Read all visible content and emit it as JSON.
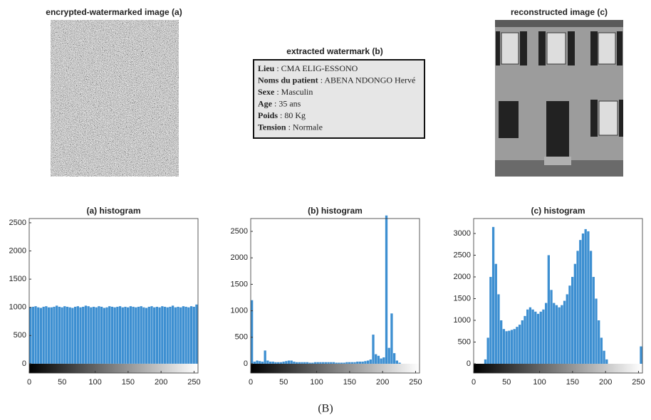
{
  "images": {
    "a_title": "encrypted-watermarked image (a)",
    "c_title": "reconstructed image (c)"
  },
  "watermark": {
    "title": "extracted watermark (b)",
    "lines": [
      {
        "label": "Lieu",
        "value": ": CMA ELIG-ESSONO"
      },
      {
        "label": "Noms du patient",
        "value": ": ABENA NDONGO Hervé"
      },
      {
        "label": "Sexe",
        "value": ": Masculin"
      },
      {
        "label": "Age",
        "value": ": 35 ans"
      },
      {
        "label": "Poids",
        "value": ": 80 Kg"
      },
      {
        "label": "Tension",
        "value": ": Normale"
      }
    ]
  },
  "caption": "(B)",
  "chart_data": [
    {
      "type": "histogram",
      "title": "(a) histogram",
      "color": "#3d8fd1",
      "bins": [
        0,
        4,
        8,
        12,
        16,
        20,
        24,
        28,
        32,
        36,
        40,
        44,
        48,
        52,
        56,
        60,
        64,
        68,
        72,
        76,
        80,
        84,
        88,
        92,
        96,
        100,
        104,
        108,
        112,
        116,
        120,
        124,
        128,
        132,
        136,
        140,
        144,
        148,
        152,
        156,
        160,
        164,
        168,
        172,
        176,
        180,
        184,
        188,
        192,
        196,
        200,
        204,
        208,
        212,
        216,
        220,
        224,
        228,
        232,
        236,
        240,
        244,
        248,
        252,
        256
      ],
      "values": [
        1000,
        1010,
        1020,
        1000,
        990,
        1010,
        1020,
        1000,
        1000,
        1010,
        1030,
        1010,
        1000,
        1020,
        1010,
        1000,
        990,
        1010,
        1020,
        1000,
        1010,
        1030,
        1020,
        1000,
        1010,
        1000,
        1020,
        1010,
        990,
        1000,
        1020,
        1010,
        1000,
        1010,
        1020,
        1000,
        1010,
        1000,
        1020,
        1010,
        1000,
        1010,
        1020,
        1000,
        990,
        1010,
        1020,
        1000,
        1010,
        1000,
        1020,
        1010,
        1000,
        1010,
        1030,
        1000,
        1010,
        1000,
        1020,
        1010,
        1000,
        1020,
        1010,
        1050
      ],
      "xlim": [
        0,
        256
      ],
      "ylim": [
        -165,
        2575
      ],
      "xticks": [
        0,
        50,
        100,
        150,
        200,
        250
      ],
      "yticks": [
        0,
        500,
        1000,
        1500,
        2000,
        2500
      ]
    },
    {
      "type": "histogram",
      "title": "(b) histogram",
      "color": "#3d8fd1",
      "bins": [
        0,
        4,
        8,
        12,
        16,
        20,
        24,
        28,
        32,
        36,
        40,
        44,
        48,
        52,
        56,
        60,
        64,
        68,
        72,
        76,
        80,
        84,
        88,
        92,
        96,
        100,
        104,
        108,
        112,
        116,
        120,
        124,
        128,
        132,
        136,
        140,
        144,
        148,
        152,
        156,
        160,
        164,
        168,
        172,
        176,
        180,
        184,
        188,
        192,
        196,
        200,
        204,
        208,
        212,
        216,
        220,
        224,
        228,
        232,
        236,
        240,
        244,
        248,
        252,
        256
      ],
      "values": [
        1200,
        40,
        60,
        50,
        40,
        250,
        60,
        40,
        40,
        30,
        30,
        30,
        40,
        50,
        60,
        60,
        40,
        30,
        30,
        30,
        30,
        30,
        20,
        20,
        30,
        30,
        30,
        30,
        30,
        30,
        30,
        30,
        20,
        20,
        20,
        20,
        30,
        30,
        30,
        30,
        40,
        40,
        40,
        50,
        60,
        80,
        550,
        180,
        150,
        100,
        120,
        2800,
        300,
        950,
        200,
        60,
        20,
        0,
        0,
        0,
        0,
        0,
        0,
        0
      ],
      "xlim": [
        0,
        256
      ],
      "ylim": [
        -175,
        2742
      ],
      "xticks": [
        0,
        50,
        100,
        150,
        200,
        250
      ],
      "yticks": [
        0,
        500,
        1000,
        1500,
        2000,
        2500
      ]
    },
    {
      "type": "histogram",
      "title": "(c) histogram",
      "color": "#3d8fd1",
      "bins": [
        0,
        4,
        8,
        12,
        16,
        20,
        24,
        28,
        32,
        36,
        40,
        44,
        48,
        52,
        56,
        60,
        64,
        68,
        72,
        76,
        80,
        84,
        88,
        92,
        96,
        100,
        104,
        108,
        112,
        116,
        120,
        124,
        128,
        132,
        136,
        140,
        144,
        148,
        152,
        156,
        160,
        164,
        168,
        172,
        176,
        180,
        184,
        188,
        192,
        196,
        200,
        204,
        208,
        212,
        216,
        220,
        224,
        228,
        232,
        236,
        240,
        244,
        248,
        252,
        256
      ],
      "values": [
        0,
        0,
        0,
        0,
        100,
        600,
        2000,
        3150,
        2300,
        1600,
        1000,
        800,
        750,
        760,
        780,
        800,
        850,
        900,
        1000,
        1100,
        1250,
        1300,
        1250,
        1200,
        1150,
        1200,
        1250,
        1400,
        2500,
        1700,
        1400,
        1350,
        1300,
        1350,
        1450,
        1600,
        1800,
        2000,
        2300,
        2600,
        2850,
        3000,
        3100,
        3050,
        2600,
        2000,
        1500,
        1000,
        600,
        300,
        100,
        0,
        0,
        0,
        0,
        0,
        0,
        0,
        0,
        0,
        0,
        0,
        0,
        400
      ],
      "xlim": [
        0,
        256
      ],
      "ylim": [
        -213,
        3344
      ],
      "xticks": [
        0,
        50,
        100,
        150,
        200,
        250
      ],
      "yticks": [
        0,
        500,
        1000,
        1500,
        2000,
        2500,
        3000
      ]
    }
  ]
}
